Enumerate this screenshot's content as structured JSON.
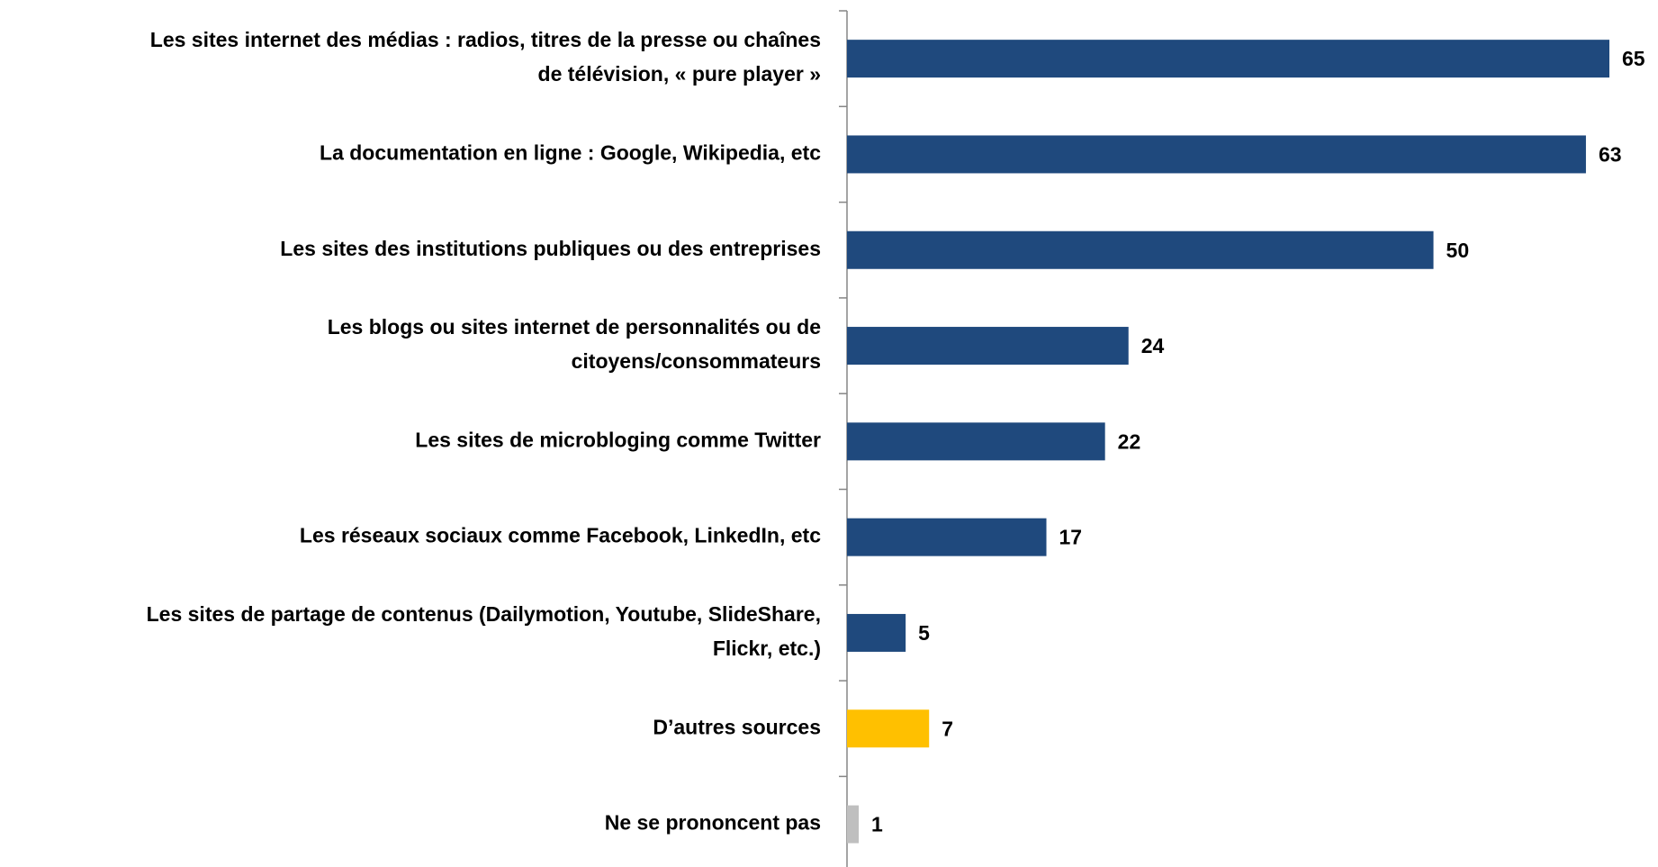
{
  "chart_data": {
    "type": "bar",
    "orientation": "horizontal",
    "categories": [
      [
        "Les sites internet des médias : radios, titres de la presse ou chaînes",
        "de télévision, « pure player »"
      ],
      [
        "La documentation en ligne : Google, Wikipedia, etc"
      ],
      [
        "Les sites des institutions publiques ou des entreprises"
      ],
      [
        "Les blogs ou sites internet de personnalités ou de",
        "citoyens/consommateurs"
      ],
      [
        "Les sites de microbloging comme Twitter"
      ],
      [
        "Les réseaux sociaux comme Facebook, LinkedIn, etc"
      ],
      [
        "Les sites de partage de contenus (Dailymotion, Youtube, SlideShare,",
        "Flickr, etc.)"
      ],
      [
        "D’autres sources"
      ],
      [
        "Ne se prononcent pas"
      ]
    ],
    "values": [
      65,
      63,
      50,
      24,
      22,
      17,
      5,
      7,
      1
    ],
    "colors": [
      "#1f497d",
      "#1f497d",
      "#1f497d",
      "#1f497d",
      "#1f497d",
      "#1f497d",
      "#1f497d",
      "#ffc000",
      "#bfbfbf"
    ]
  }
}
